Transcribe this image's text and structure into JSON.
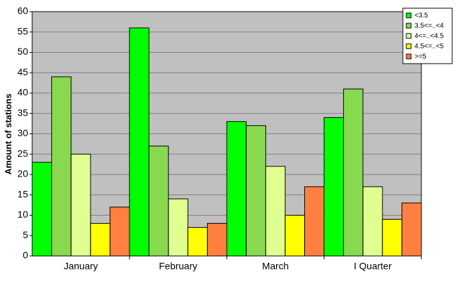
{
  "chart_data": {
    "type": "bar",
    "y_label": "Amount of stations",
    "categories": [
      "January",
      "February",
      "March",
      "I Quarter"
    ],
    "series": [
      {
        "name": "<3.5",
        "color": "#00ff00",
        "values": [
          23,
          56,
          33,
          34
        ]
      },
      {
        "name": "3.5<=..<4",
        "color": "#88d850",
        "values": [
          44,
          27,
          32,
          41
        ]
      },
      {
        "name": "4<=..<4.5",
        "color": "#e0ff90",
        "values": [
          25,
          14,
          22,
          17
        ]
      },
      {
        "name": "4.5<=..<5",
        "color": "#ffff00",
        "values": [
          8,
          7,
          10,
          9
        ]
      },
      {
        "name": ">=5",
        "color": "#ff8040",
        "values": [
          12,
          8,
          17,
          13
        ]
      }
    ],
    "ylim": [
      0,
      60
    ],
    "yticks": [
      0,
      5,
      10,
      15,
      20,
      25,
      30,
      35,
      40,
      45,
      50,
      55,
      60
    ],
    "grid": true,
    "legend": "top-right"
  }
}
